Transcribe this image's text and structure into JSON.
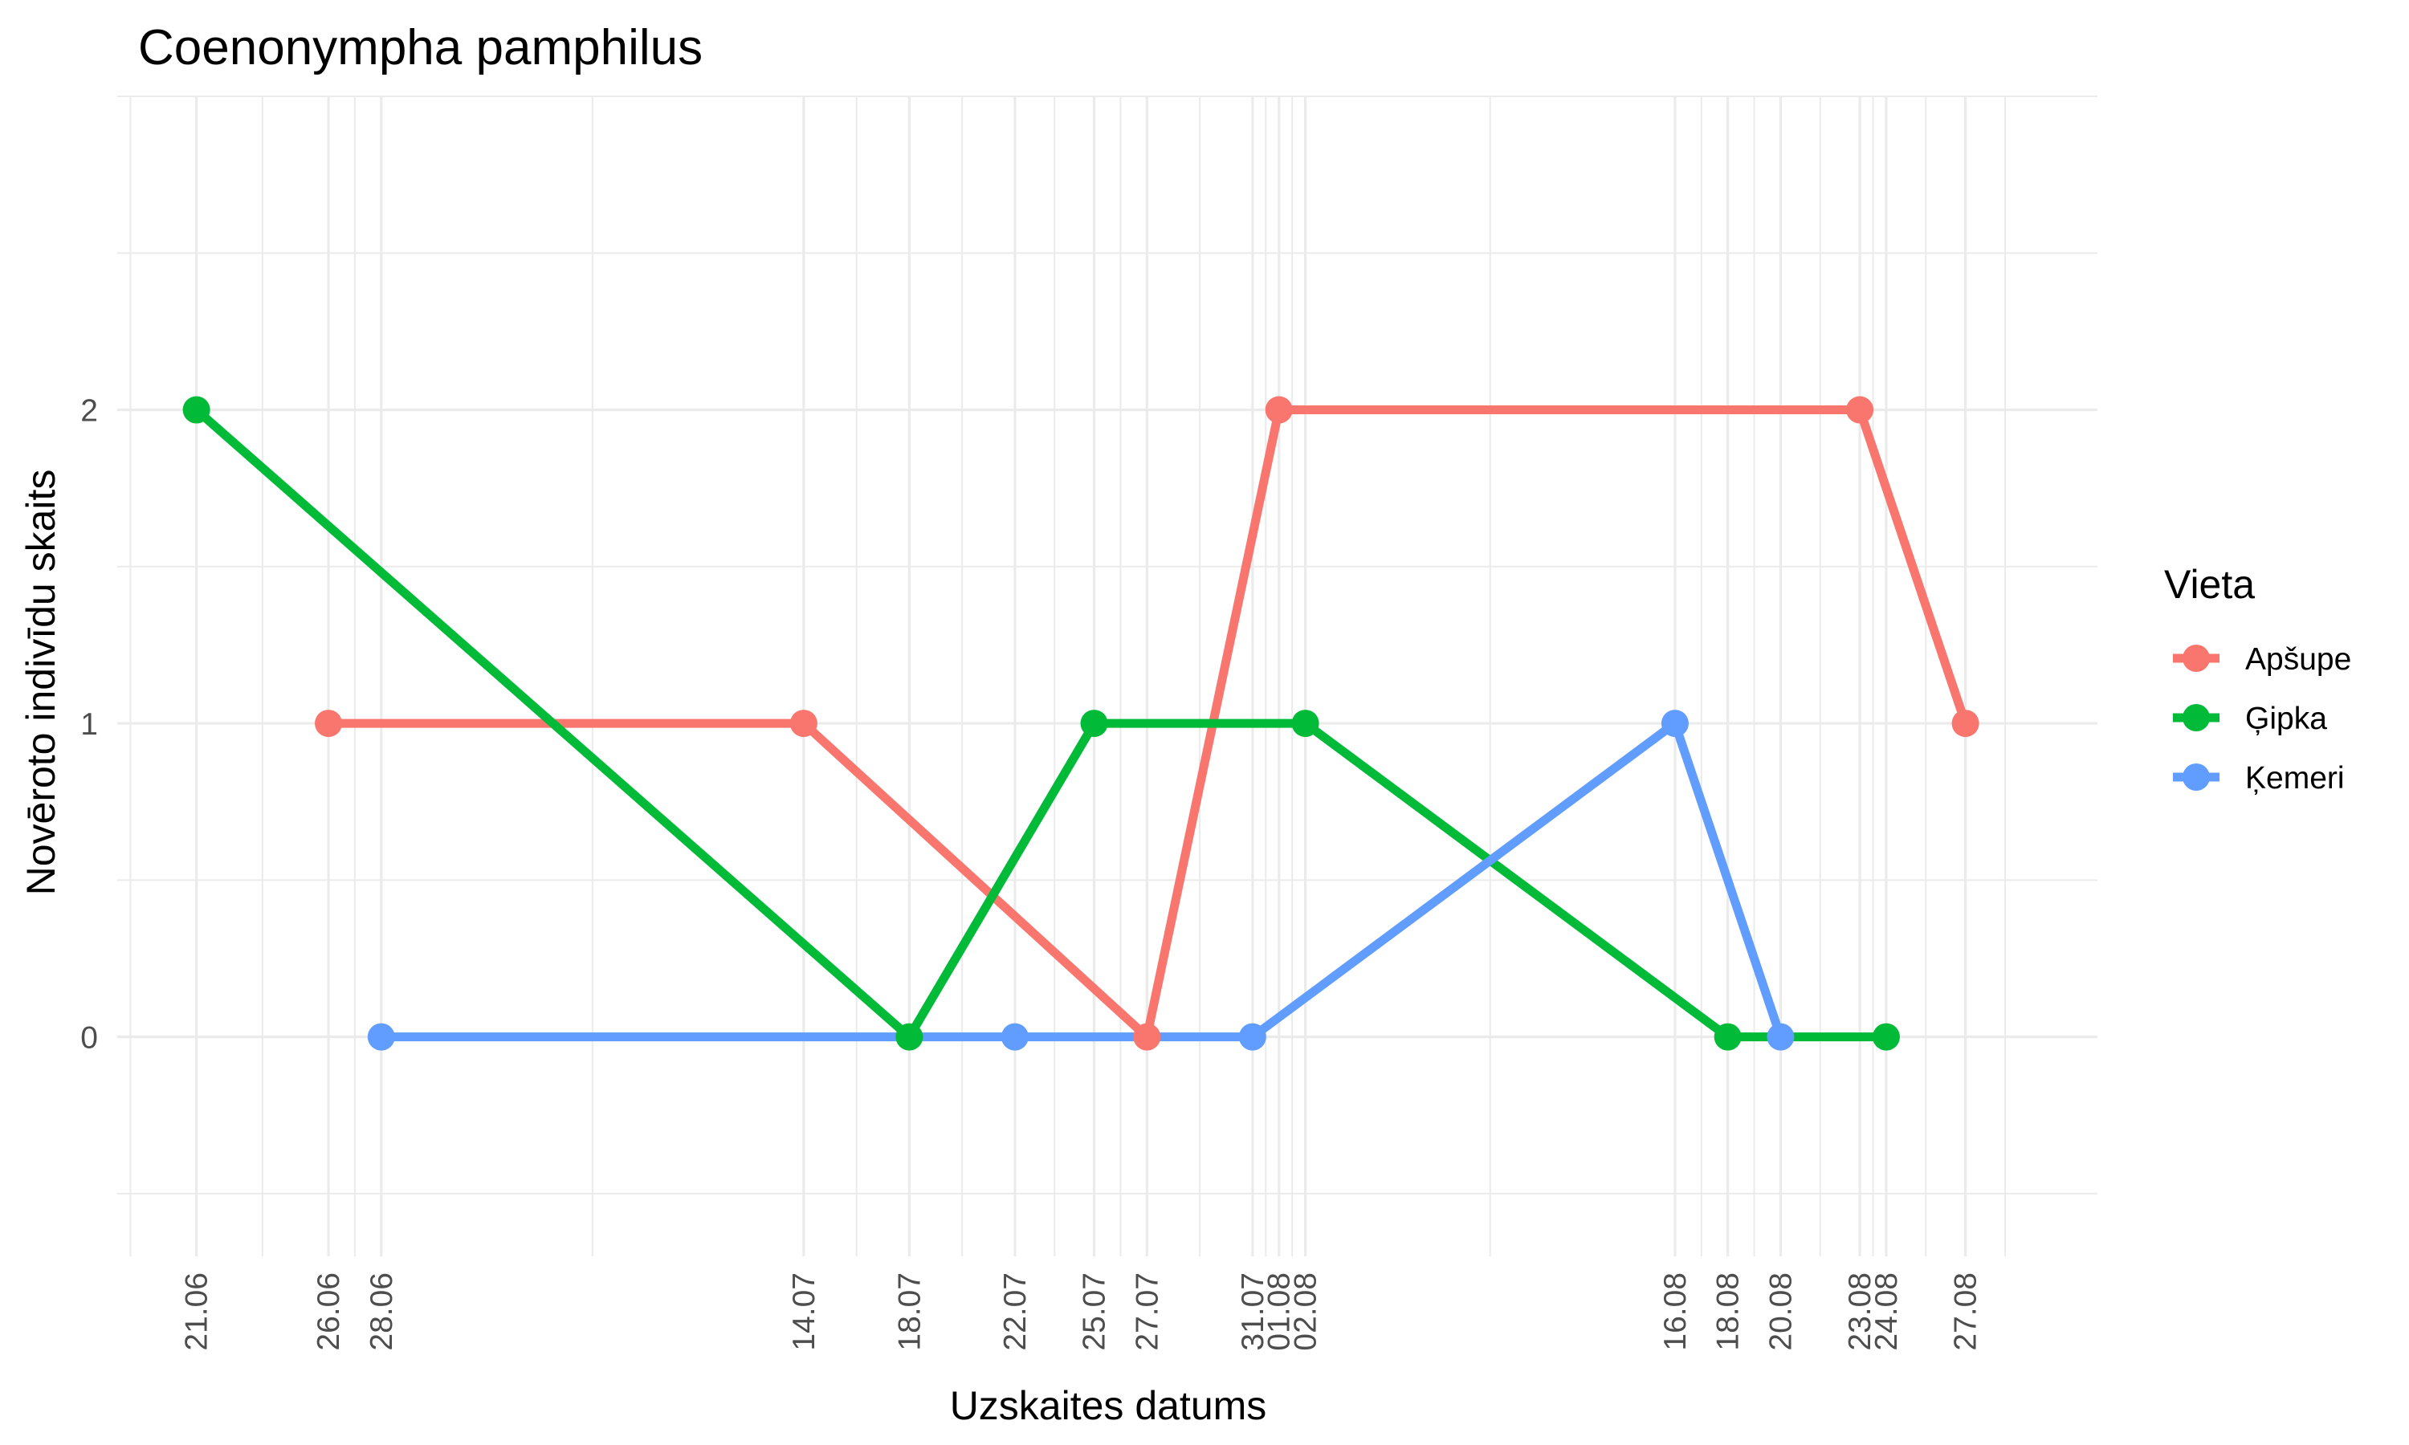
{
  "chart_data": {
    "type": "line",
    "title": "Coenonympha pamphilus",
    "xlabel": "Uzskaites datums",
    "ylabel": "Novēroto indivīdu skaits",
    "x_ticks": [
      "21.06",
      "26.06",
      "28.06",
      "14.07",
      "18.07",
      "22.07",
      "25.07",
      "27.07",
      "31.07",
      "01.08",
      "02.08",
      "16.08",
      "18.08",
      "20.08",
      "23.08",
      "24.08",
      "27.08"
    ],
    "y_ticks": [
      0,
      1,
      2
    ],
    "xlim": [
      "2023-06-18",
      "2023-09-01"
    ],
    "ylim": [
      -0.7,
      3.0
    ],
    "grid": true,
    "legend": {
      "title": "Vieta",
      "position": "right"
    },
    "series": [
      {
        "name": "Apšupe",
        "color": "#F8766D",
        "points": [
          {
            "x": "26.06",
            "date": "2023-06-26",
            "y": 1
          },
          {
            "x": "14.07",
            "date": "2023-07-14",
            "y": 1
          },
          {
            "x": "27.07",
            "date": "2023-07-27",
            "y": 0
          },
          {
            "x": "01.08",
            "date": "2023-08-01",
            "y": 2
          },
          {
            "x": "23.08",
            "date": "2023-08-23",
            "y": 2
          },
          {
            "x": "27.08",
            "date": "2023-08-27",
            "y": 1
          }
        ]
      },
      {
        "name": "Ģipka",
        "color": "#00BA38",
        "points": [
          {
            "x": "21.06",
            "date": "2023-06-21",
            "y": 2
          },
          {
            "x": "18.07",
            "date": "2023-07-18",
            "y": 0
          },
          {
            "x": "25.07",
            "date": "2023-07-25",
            "y": 1
          },
          {
            "x": "02.08",
            "date": "2023-08-02",
            "y": 1
          },
          {
            "x": "18.08",
            "date": "2023-08-18",
            "y": 0
          },
          {
            "x": "24.08",
            "date": "2023-08-24",
            "y": 0
          }
        ]
      },
      {
        "name": "Ķemeri",
        "color": "#619CFF",
        "points": [
          {
            "x": "28.06",
            "date": "2023-06-28",
            "y": 0
          },
          {
            "x": "22.07",
            "date": "2023-07-22",
            "y": 0
          },
          {
            "x": "31.07",
            "date": "2023-07-31",
            "y": 0
          },
          {
            "x": "16.08",
            "date": "2023-08-16",
            "y": 1
          },
          {
            "x": "20.08",
            "date": "2023-08-20",
            "y": 0
          }
        ]
      }
    ]
  }
}
